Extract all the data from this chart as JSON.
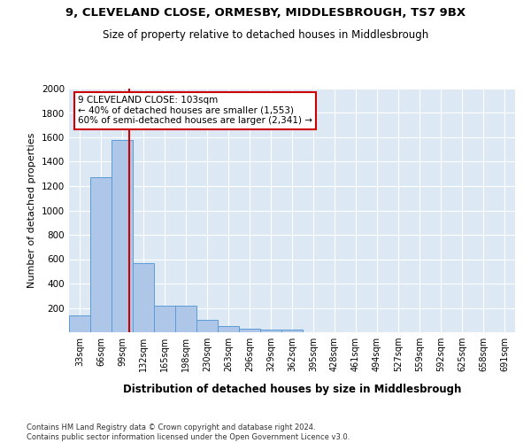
{
  "title1": "9, CLEVELAND CLOSE, ORMESBY, MIDDLESBROUGH, TS7 9BX",
  "title2": "Size of property relative to detached houses in Middlesbrough",
  "xlabel": "Distribution of detached houses by size in Middlesbrough",
  "ylabel": "Number of detached properties",
  "footnote": "Contains HM Land Registry data © Crown copyright and database right 2024.\nContains public sector information licensed under the Open Government Licence v3.0.",
  "bins": [
    "33sqm",
    "66sqm",
    "99sqm",
    "132sqm",
    "165sqm",
    "198sqm",
    "230sqm",
    "263sqm",
    "296sqm",
    "329sqm",
    "362sqm",
    "395sqm",
    "428sqm",
    "461sqm",
    "494sqm",
    "527sqm",
    "559sqm",
    "592sqm",
    "625sqm",
    "658sqm",
    "691sqm"
  ],
  "values": [
    140,
    1270,
    1575,
    570,
    215,
    215,
    100,
    50,
    30,
    20,
    20,
    0,
    0,
    0,
    0,
    0,
    0,
    0,
    0,
    0,
    0
  ],
  "bar_color": "#aec6e8",
  "bar_edge_color": "#5b9bd5",
  "background_color": "#dce9f5",
  "grid_color": "#ffffff",
  "vline_x": 2.33,
  "vline_color": "#cc0000",
  "annotation_text": "9 CLEVELAND CLOSE: 103sqm\n← 40% of detached houses are smaller (1,553)\n60% of semi-detached houses are larger (2,341) →",
  "annotation_box_color": "#cc0000",
  "ylim": [
    0,
    2000
  ],
  "yticks": [
    0,
    200,
    400,
    600,
    800,
    1000,
    1200,
    1400,
    1600,
    1800,
    2000
  ]
}
